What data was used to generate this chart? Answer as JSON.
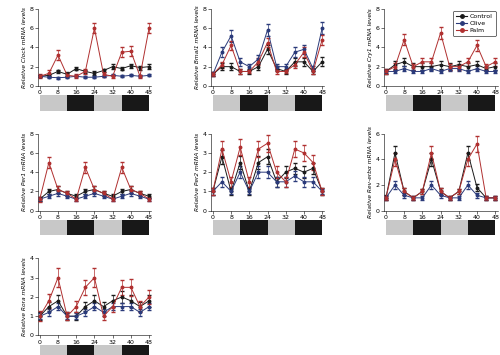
{
  "x": [
    0,
    4,
    8,
    12,
    16,
    20,
    24,
    28,
    32,
    36,
    40,
    44,
    48
  ],
  "subplots": [
    {
      "ylabel": "Relative Clock mRNA levels",
      "ylim": [
        0,
        8
      ],
      "yticks": [
        0,
        2,
        4,
        6,
        8
      ],
      "control": [
        1.0,
        1.1,
        1.5,
        1.2,
        1.8,
        1.5,
        1.3,
        1.6,
        2.0,
        1.8,
        2.1,
        1.9,
        2.0
      ],
      "control_err": [
        0.1,
        0.15,
        0.2,
        0.2,
        0.2,
        0.2,
        0.2,
        0.2,
        0.25,
        0.2,
        0.2,
        0.2,
        0.25
      ],
      "olive": [
        1.0,
        0.9,
        0.85,
        0.9,
        1.0,
        0.9,
        0.9,
        1.0,
        1.1,
        1.0,
        1.1,
        1.0,
        1.1
      ],
      "olive_err": [
        0.1,
        0.1,
        0.1,
        0.1,
        0.1,
        0.1,
        0.1,
        0.1,
        0.1,
        0.1,
        0.1,
        0.1,
        0.1
      ],
      "palm": [
        1.0,
        1.3,
        3.2,
        1.1,
        1.0,
        1.5,
        6.0,
        1.2,
        1.0,
        3.5,
        3.6,
        1.0,
        6.0
      ],
      "palm_err": [
        0.2,
        0.3,
        0.5,
        0.2,
        0.2,
        0.3,
        0.5,
        0.25,
        0.15,
        0.5,
        0.5,
        0.15,
        0.5
      ]
    },
    {
      "ylabel": "Relative Bmal1 mRNA levels",
      "ylim": [
        0,
        8
      ],
      "yticks": [
        0,
        2,
        4,
        6,
        8
      ],
      "control": [
        1.2,
        2.0,
        2.0,
        1.5,
        1.5,
        2.0,
        3.8,
        1.8,
        1.5,
        2.5,
        2.5,
        1.5,
        2.5
      ],
      "control_err": [
        0.2,
        0.35,
        0.35,
        0.3,
        0.25,
        0.3,
        0.5,
        0.3,
        0.25,
        0.4,
        0.4,
        0.25,
        0.45
      ],
      "olive": [
        1.2,
        3.5,
        5.2,
        2.5,
        2.0,
        2.8,
        5.8,
        2.0,
        2.0,
        3.5,
        3.8,
        1.8,
        6.0
      ],
      "olive_err": [
        0.2,
        0.5,
        0.6,
        0.4,
        0.3,
        0.4,
        0.6,
        0.3,
        0.3,
        0.5,
        0.5,
        0.3,
        0.6
      ],
      "palm": [
        1.2,
        2.2,
        4.2,
        1.5,
        1.5,
        2.5,
        4.5,
        1.5,
        1.5,
        2.2,
        3.5,
        1.5,
        4.8
      ],
      "palm_err": [
        0.2,
        0.3,
        0.5,
        0.25,
        0.2,
        0.35,
        0.5,
        0.25,
        0.2,
        0.3,
        0.5,
        0.25,
        0.5
      ]
    },
    {
      "ylabel": "Relative Cry1 mRNA levels",
      "ylim": [
        0,
        8
      ],
      "yticks": [
        0,
        2,
        4,
        6,
        8
      ],
      "control": [
        1.5,
        2.2,
        2.5,
        2.0,
        2.0,
        2.0,
        2.2,
        2.0,
        2.2,
        2.0,
        2.2,
        1.8,
        2.0
      ],
      "control_err": [
        0.25,
        0.4,
        0.4,
        0.35,
        0.35,
        0.35,
        0.4,
        0.35,
        0.4,
        0.35,
        0.4,
        0.3,
        0.35
      ],
      "olive": [
        1.5,
        1.5,
        1.8,
        1.5,
        1.5,
        1.8,
        1.5,
        1.8,
        1.8,
        1.5,
        1.8,
        1.5,
        1.5
      ],
      "olive_err": [
        0.2,
        0.2,
        0.25,
        0.2,
        0.2,
        0.25,
        0.2,
        0.25,
        0.25,
        0.2,
        0.25,
        0.2,
        0.2
      ],
      "palm": [
        1.5,
        2.0,
        4.8,
        2.0,
        2.5,
        2.5,
        5.5,
        2.0,
        2.0,
        2.5,
        4.2,
        2.0,
        2.5
      ],
      "palm_err": [
        0.25,
        0.35,
        0.6,
        0.3,
        0.4,
        0.4,
        0.6,
        0.3,
        0.3,
        0.4,
        0.6,
        0.3,
        0.4
      ]
    },
    {
      "ylabel": "Relative Per1 mRNA levels",
      "ylim": [
        0,
        8
      ],
      "yticks": [
        0,
        2,
        4,
        6,
        8
      ],
      "control": [
        1.2,
        2.0,
        2.2,
        1.8,
        1.5,
        2.0,
        2.2,
        1.8,
        1.5,
        2.0,
        2.2,
        1.8,
        1.5
      ],
      "control_err": [
        0.2,
        0.3,
        0.35,
        0.25,
        0.2,
        0.3,
        0.35,
        0.25,
        0.2,
        0.3,
        0.35,
        0.25,
        0.2
      ],
      "olive": [
        1.2,
        1.5,
        1.8,
        1.5,
        1.2,
        1.5,
        1.8,
        1.5,
        1.2,
        1.5,
        1.8,
        1.5,
        1.2
      ],
      "olive_err": [
        0.2,
        0.2,
        0.25,
        0.2,
        0.15,
        0.2,
        0.25,
        0.2,
        0.15,
        0.2,
        0.25,
        0.2,
        0.15
      ],
      "palm": [
        1.2,
        5.0,
        2.2,
        1.8,
        1.2,
        4.5,
        2.2,
        1.8,
        1.2,
        4.5,
        2.2,
        1.8,
        1.2
      ],
      "palm_err": [
        0.25,
        0.6,
        0.35,
        0.25,
        0.2,
        0.6,
        0.35,
        0.25,
        0.2,
        0.6,
        0.35,
        0.25,
        0.2
      ]
    },
    {
      "ylabel": "Relative Per2 mRNA levels",
      "ylim": [
        0,
        4
      ],
      "yticks": [
        0,
        1,
        2,
        3,
        4
      ],
      "control": [
        1.0,
        2.8,
        1.0,
        2.5,
        1.0,
        2.5,
        2.8,
        1.5,
        2.0,
        2.2,
        2.0,
        2.2,
        1.0
      ],
      "control_err": [
        0.2,
        0.35,
        0.2,
        0.35,
        0.2,
        0.35,
        0.4,
        0.25,
        0.3,
        0.3,
        0.3,
        0.3,
        0.2
      ],
      "olive": [
        1.0,
        1.5,
        1.0,
        2.0,
        1.0,
        2.0,
        2.0,
        1.5,
        1.5,
        1.8,
        1.5,
        1.5,
        1.0
      ],
      "olive_err": [
        0.2,
        0.25,
        0.15,
        0.3,
        0.15,
        0.3,
        0.3,
        0.25,
        0.25,
        0.25,
        0.25,
        0.25,
        0.15
      ],
      "palm": [
        1.0,
        3.2,
        1.5,
        3.3,
        1.5,
        3.2,
        3.5,
        2.0,
        1.5,
        3.2,
        3.0,
        2.5,
        1.0
      ],
      "palm_err": [
        0.2,
        0.4,
        0.25,
        0.4,
        0.25,
        0.4,
        0.45,
        0.3,
        0.25,
        0.4,
        0.4,
        0.4,
        0.2
      ]
    },
    {
      "ylabel": "Relative Rev-erbα mRNA levels",
      "ylim": [
        0,
        6
      ],
      "yticks": [
        0,
        2,
        4,
        6
      ],
      "control": [
        1.0,
        4.5,
        1.5,
        1.0,
        1.5,
        4.0,
        1.5,
        1.0,
        1.5,
        4.5,
        1.8,
        1.0,
        1.0
      ],
      "control_err": [
        0.2,
        0.55,
        0.25,
        0.15,
        0.2,
        0.5,
        0.25,
        0.15,
        0.2,
        0.55,
        0.3,
        0.15,
        0.15
      ],
      "olive": [
        1.0,
        2.0,
        1.2,
        1.0,
        1.0,
        2.0,
        1.2,
        1.0,
        1.0,
        2.0,
        1.2,
        1.0,
        1.0
      ],
      "olive_err": [
        0.15,
        0.3,
        0.2,
        0.15,
        0.15,
        0.3,
        0.2,
        0.15,
        0.15,
        0.3,
        0.2,
        0.15,
        0.15
      ],
      "palm": [
        1.0,
        4.0,
        1.5,
        1.0,
        1.5,
        4.5,
        1.5,
        1.0,
        1.5,
        4.0,
        5.2,
        1.0,
        1.0
      ],
      "palm_err": [
        0.15,
        0.5,
        0.25,
        0.15,
        0.2,
        0.5,
        0.25,
        0.15,
        0.2,
        0.5,
        0.6,
        0.15,
        0.15
      ]
    },
    {
      "ylabel": "Relative Rora mRNA levels",
      "ylim": [
        0,
        4
      ],
      "yticks": [
        0,
        1,
        2,
        3,
        4
      ],
      "control": [
        1.0,
        1.5,
        1.8,
        1.0,
        1.0,
        1.5,
        1.8,
        1.5,
        1.8,
        2.0,
        1.8,
        1.5,
        1.8
      ],
      "control_err": [
        0.2,
        0.25,
        0.3,
        0.2,
        0.2,
        0.25,
        0.3,
        0.25,
        0.3,
        0.3,
        0.3,
        0.25,
        0.3
      ],
      "olive": [
        1.0,
        1.2,
        1.5,
        1.0,
        1.0,
        1.2,
        1.5,
        1.2,
        1.5,
        1.5,
        1.5,
        1.2,
        1.5
      ],
      "olive_err": [
        0.15,
        0.2,
        0.2,
        0.15,
        0.15,
        0.2,
        0.2,
        0.2,
        0.2,
        0.2,
        0.2,
        0.2,
        0.2
      ],
      "palm": [
        1.0,
        1.8,
        3.0,
        1.0,
        1.5,
        2.5,
        3.0,
        1.0,
        1.5,
        2.5,
        2.5,
        1.5,
        2.0
      ],
      "palm_err": [
        0.25,
        0.35,
        0.5,
        0.2,
        0.3,
        0.4,
        0.5,
        0.2,
        0.3,
        0.4,
        0.45,
        0.3,
        0.35
      ]
    }
  ],
  "colors": {
    "control": "#1a1a1a",
    "olive": "#2a3a7a",
    "palm": "#b03030"
  },
  "legend_labels": [
    "Control",
    "Olive",
    "Palm"
  ],
  "xticks": [
    0,
    8,
    16,
    24,
    32,
    40,
    48
  ],
  "light_segments": [
    [
      0,
      12,
      "#c8c8c8"
    ],
    [
      12,
      24,
      "#181818"
    ],
    [
      24,
      36,
      "#c8c8c8"
    ],
    [
      36,
      48,
      "#181818"
    ]
  ]
}
